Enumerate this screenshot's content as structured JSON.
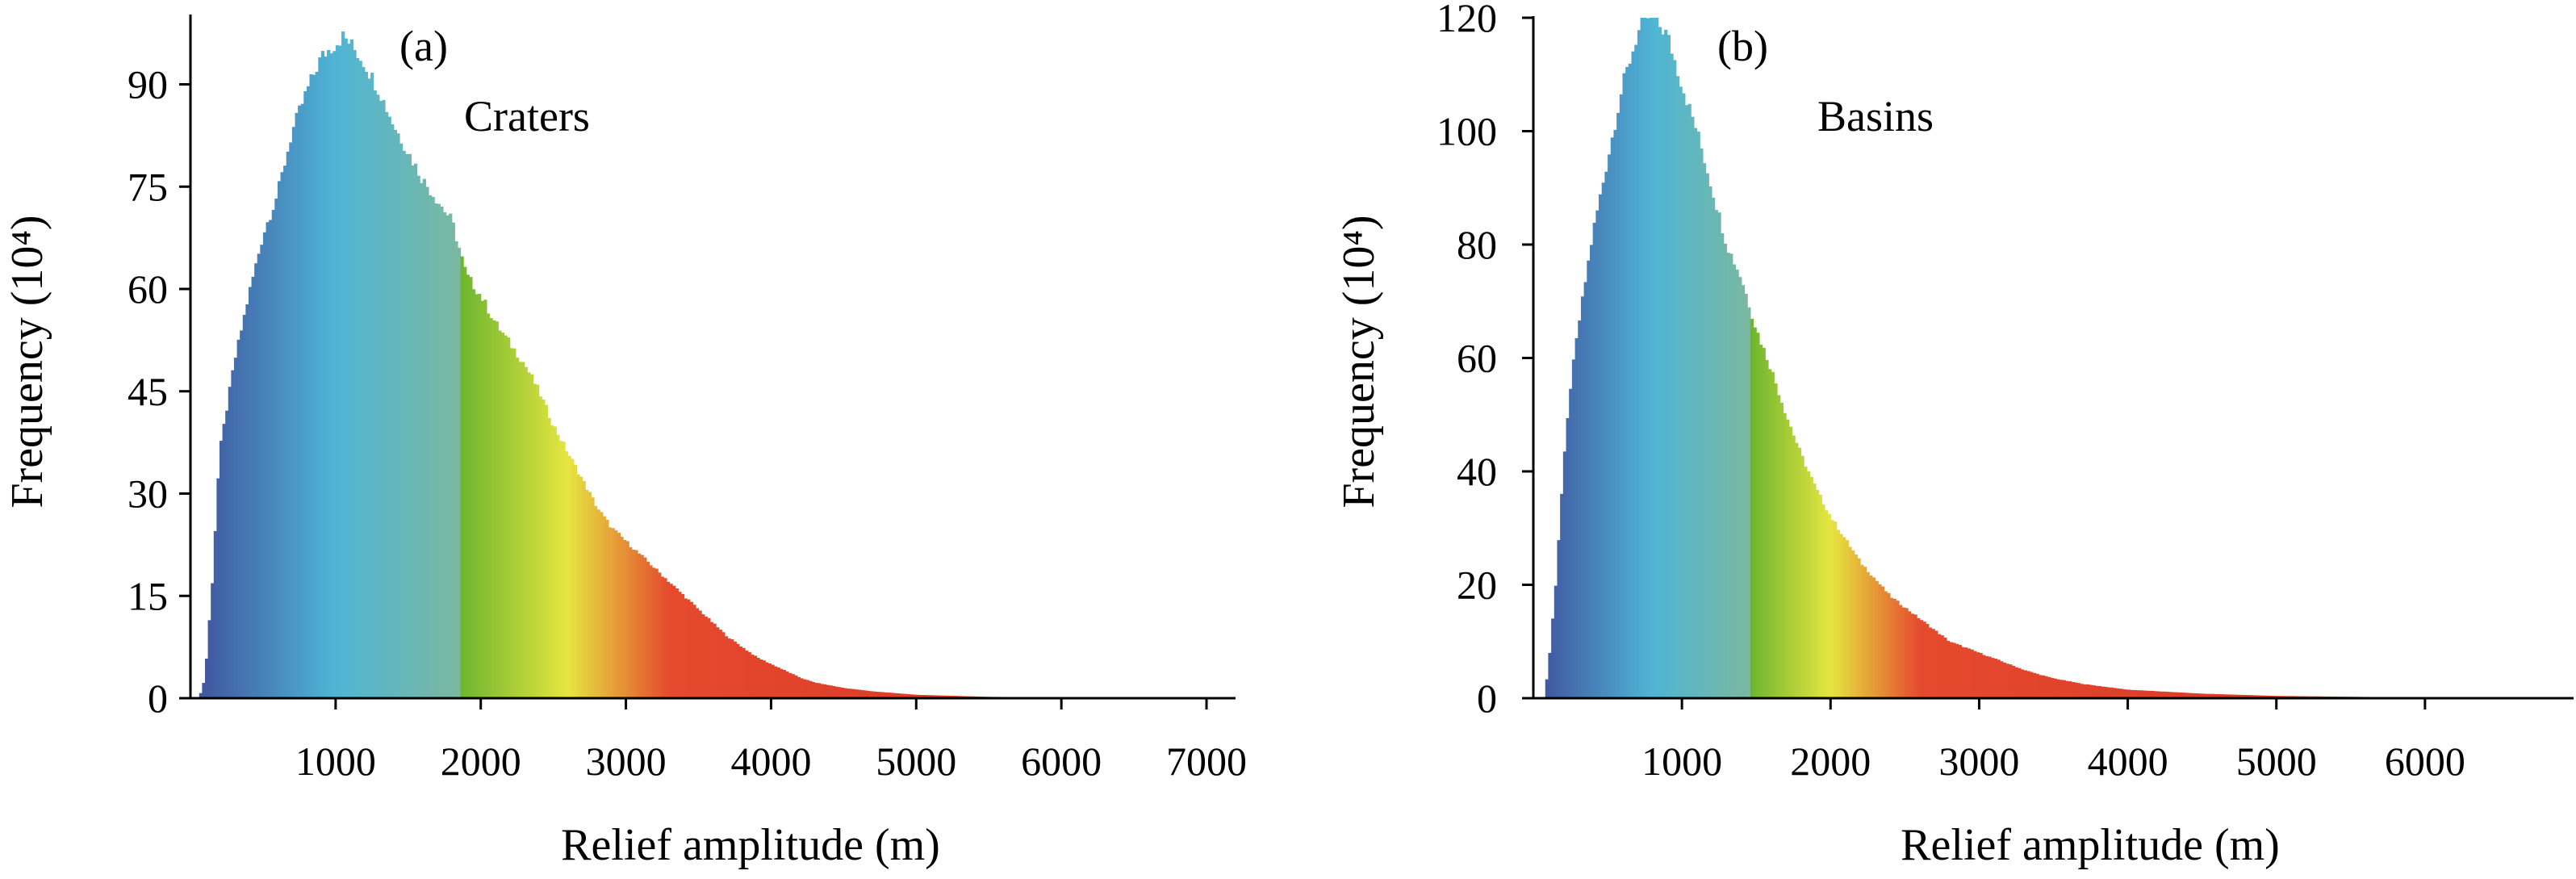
{
  "chart_data": [
    {
      "type": "bar",
      "panel_label": "(a)",
      "annotation": "Craters",
      "xlabel": "Relief amplitude (m)",
      "ylabel": "Frequency (10⁴)",
      "xlim": [
        0,
        7200
      ],
      "ylim": [
        0,
        100
      ],
      "xticks": [
        1000,
        2000,
        3000,
        4000,
        5000,
        6000,
        7000
      ],
      "yticks": [
        0,
        15,
        30,
        45,
        60,
        75,
        90
      ],
      "bin_width": 20,
      "grid": false,
      "legend": "none",
      "color_stops": [
        {
          "x": 0,
          "color": "#3f4e9b"
        },
        {
          "x": 1000,
          "color": "#4fb5d6"
        },
        {
          "x": 1850,
          "color": "#7ab8a0"
        },
        {
          "x": 1860,
          "color": "#6db52f"
        },
        {
          "x": 2600,
          "color": "#e6e640"
        },
        {
          "x": 3300,
          "color": "#e54a2e"
        },
        {
          "x": 7200,
          "color": "#d42a20"
        }
      ],
      "profile": [
        [
          0,
          0
        ],
        [
          60,
          0
        ],
        [
          100,
          3
        ],
        [
          150,
          17
        ],
        [
          200,
          36
        ],
        [
          300,
          49
        ],
        [
          400,
          59
        ],
        [
          500,
          68
        ],
        [
          600,
          74
        ],
        [
          700,
          83
        ],
        [
          800,
          89
        ],
        [
          900,
          94
        ],
        [
          1000,
          96
        ],
        [
          1050,
          97
        ],
        [
          1100,
          96
        ],
        [
          1200,
          93
        ],
        [
          1300,
          89
        ],
        [
          1400,
          84
        ],
        [
          1500,
          80
        ],
        [
          1600,
          76
        ],
        [
          1700,
          73
        ],
        [
          1800,
          70
        ],
        [
          1900,
          62
        ],
        [
          2000,
          59
        ],
        [
          2100,
          55
        ],
        [
          2200,
          52
        ],
        [
          2300,
          49
        ],
        [
          2400,
          45
        ],
        [
          2500,
          40
        ],
        [
          2600,
          36
        ],
        [
          2700,
          32
        ],
        [
          2800,
          28
        ],
        [
          2900,
          25
        ],
        [
          3000,
          23
        ],
        [
          3100,
          21
        ],
        [
          3200,
          19
        ],
        [
          3300,
          17
        ],
        [
          3400,
          15
        ],
        [
          3500,
          13
        ],
        [
          3600,
          11
        ],
        [
          3700,
          9
        ],
        [
          3800,
          7.5
        ],
        [
          3900,
          6
        ],
        [
          4000,
          5
        ],
        [
          4100,
          4
        ],
        [
          4200,
          3
        ],
        [
          4300,
          2.3
        ],
        [
          4500,
          1.5
        ],
        [
          4700,
          1
        ],
        [
          5000,
          0.5
        ],
        [
          5500,
          0.2
        ],
        [
          6000,
          0.1
        ],
        [
          7000,
          0
        ]
      ]
    },
    {
      "type": "bar",
      "panel_label": "(b)",
      "annotation": "Basins",
      "xlabel": "Relief amplitude (m)",
      "ylabel": "Frequency (10⁴)",
      "xlim": [
        0,
        7000
      ],
      "ylim": [
        0,
        120
      ],
      "xticks": [
        1000,
        2000,
        3000,
        4000,
        5000,
        6000
      ],
      "yticks": [
        0,
        20,
        40,
        60,
        80,
        100,
        120
      ],
      "bin_width": 20,
      "grid": false,
      "legend": "none",
      "color_stops": [
        {
          "x": 0,
          "color": "#3f4e9b"
        },
        {
          "x": 800,
          "color": "#4fb5d6"
        },
        {
          "x": 1450,
          "color": "#7ab8a0"
        },
        {
          "x": 1460,
          "color": "#6db52f"
        },
        {
          "x": 2000,
          "color": "#e6e640"
        },
        {
          "x": 2600,
          "color": "#e54a2e"
        },
        {
          "x": 7000,
          "color": "#d42a20"
        }
      ],
      "profile": [
        [
          0,
          0
        ],
        [
          70,
          0
        ],
        [
          100,
          5
        ],
        [
          150,
          20
        ],
        [
          200,
          40
        ],
        [
          250,
          55
        ],
        [
          300,
          65
        ],
        [
          400,
          82
        ],
        [
          500,
          95
        ],
        [
          600,
          108
        ],
        [
          700,
          117
        ],
        [
          750,
          120
        ],
        [
          800,
          120
        ],
        [
          900,
          117
        ],
        [
          1000,
          108
        ],
        [
          1100,
          100
        ],
        [
          1200,
          90
        ],
        [
          1300,
          80
        ],
        [
          1400,
          74
        ],
        [
          1500,
          65
        ],
        [
          1600,
          58
        ],
        [
          1700,
          50
        ],
        [
          1800,
          43
        ],
        [
          1900,
          37
        ],
        [
          2000,
          32
        ],
        [
          2100,
          28
        ],
        [
          2200,
          24
        ],
        [
          2300,
          21
        ],
        [
          2400,
          18
        ],
        [
          2500,
          16
        ],
        [
          2600,
          14
        ],
        [
          2700,
          12
        ],
        [
          2800,
          10
        ],
        [
          2900,
          9
        ],
        [
          3000,
          8
        ],
        [
          3100,
          7
        ],
        [
          3200,
          6
        ],
        [
          3300,
          5
        ],
        [
          3400,
          4.2
        ],
        [
          3500,
          3.5
        ],
        [
          3700,
          2.5
        ],
        [
          4000,
          1.5
        ],
        [
          4500,
          0.8
        ],
        [
          5000,
          0.4
        ],
        [
          6000,
          0.1
        ],
        [
          7000,
          0
        ]
      ]
    }
  ]
}
